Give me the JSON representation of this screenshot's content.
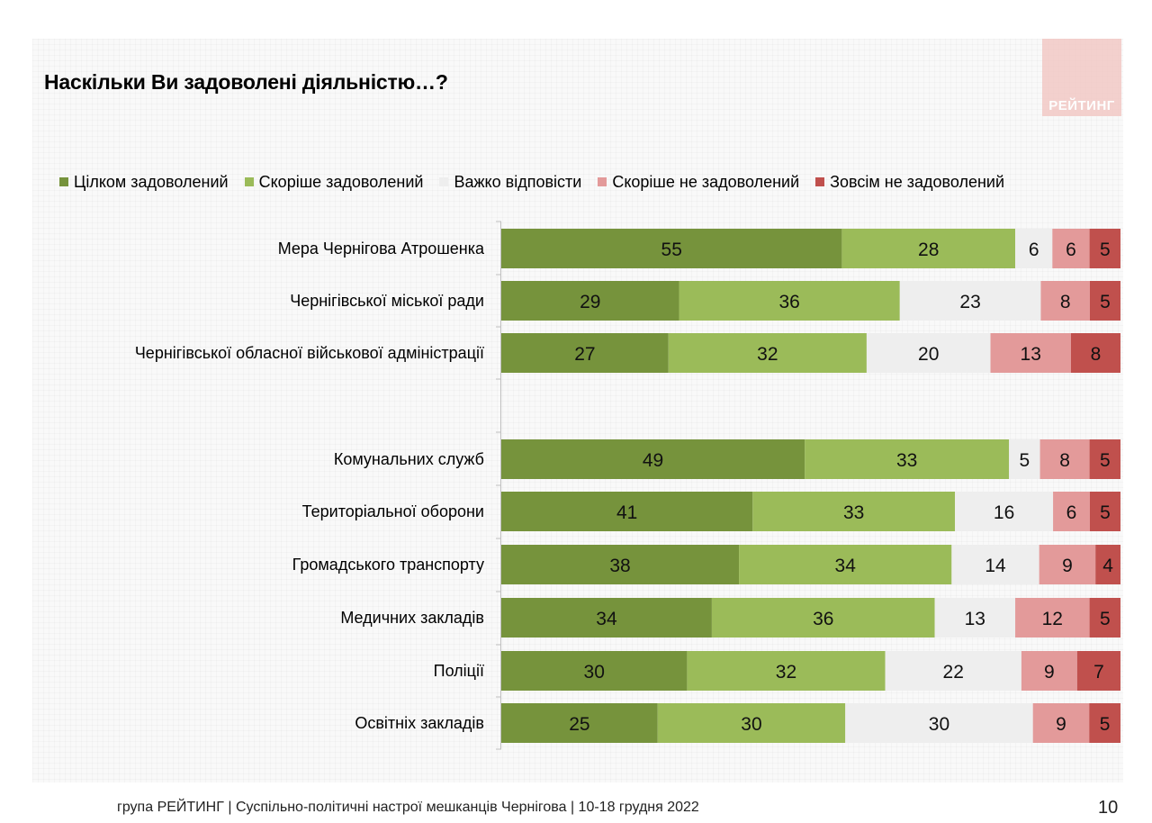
{
  "title": "Наскільки Ви задоволені діяльністю…?",
  "logo": {
    "text": "РЕЙТИНГ"
  },
  "footer": {
    "text": "група РЕЙТИНГ  | Суспільно-політичні настрої мешканців Чернігова | 10-18 грудня 2022"
  },
  "page_number": "10",
  "colors": {
    "fully_satisfied": "#76933c",
    "rather_satisfied": "#9bbb59",
    "hard_to_say": "#eeeeee",
    "rather_dissatisfied": "#e39a9a",
    "fully_dissatisfied": "#c0504d"
  },
  "chart_data": {
    "type": "bar",
    "orientation": "horizontal",
    "stacked": true,
    "normalized": true,
    "xlim": [
      0,
      100
    ],
    "legend_position": "top",
    "series": [
      {
        "name": "Цілком задоволений",
        "color": "#76933c",
        "values": [
          55,
          29,
          27,
          49,
          41,
          38,
          34,
          30,
          25
        ]
      },
      {
        "name": "Скоріше задоволений",
        "color": "#9bbb59",
        "values": [
          28,
          36,
          32,
          33,
          33,
          34,
          36,
          32,
          30
        ]
      },
      {
        "name": "Важко відповісти",
        "color": "#eeeeee",
        "values": [
          6,
          23,
          20,
          5,
          16,
          14,
          13,
          22,
          30
        ]
      },
      {
        "name": "Скоріше не задоволений",
        "color": "#e39a9a",
        "values": [
          6,
          8,
          13,
          8,
          6,
          9,
          12,
          9,
          9
        ]
      },
      {
        "name": "Зовсім не задоволений",
        "color": "#c0504d",
        "values": [
          5,
          5,
          8,
          5,
          5,
          4,
          5,
          7,
          5
        ]
      }
    ],
    "categories": [
      "Мера Чернігова Атрошенка",
      "Чернігівської міської ради",
      "Чернігівської обласної військової адміністрації",
      "Комунальних служб",
      "Територіальної оборони",
      "Громадського транспорту",
      "Медичних закладів",
      "Поліції",
      "Освітніх закладів"
    ],
    "groups": [
      [
        0,
        1,
        2
      ],
      [
        3,
        4,
        5,
        6,
        7,
        8
      ]
    ]
  }
}
